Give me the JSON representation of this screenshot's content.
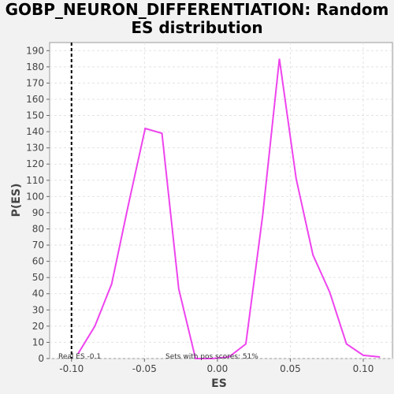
{
  "chart_data": {
    "type": "line",
    "title_line1": "GOBP_NEURON_DIFFERENTIATION: Random",
    "title_line2": "ES distribution",
    "xlabel": "ES",
    "ylabel": "P(ES)",
    "xlim": [
      -0.115,
      0.12
    ],
    "ylim": [
      0,
      195
    ],
    "x_ticks": [
      -0.1,
      -0.05,
      0.0,
      0.05,
      0.1
    ],
    "x_tick_labels": [
      "-0.10",
      "-0.05",
      "0.00",
      "0.05",
      "0.10"
    ],
    "y_ticks": [
      0,
      10,
      20,
      30,
      40,
      50,
      60,
      70,
      80,
      90,
      100,
      110,
      120,
      130,
      140,
      150,
      160,
      170,
      180,
      190
    ],
    "y_tick_labels": [
      "0",
      "10",
      "20",
      "30",
      "40",
      "50",
      "60",
      "70",
      "80",
      "90",
      "100",
      "110",
      "120",
      "130",
      "140",
      "150",
      "160",
      "170",
      "180",
      "190"
    ],
    "grid": true,
    "series": [
      {
        "color": "#ee44ee",
        "x": [
          -0.0955,
          -0.084,
          -0.0725,
          -0.061,
          -0.0495,
          -0.038,
          -0.0265,
          -0.015,
          -0.0035,
          0.008,
          0.0195,
          0.031,
          0.0425,
          0.054,
          0.0655,
          0.077,
          0.0885,
          0.1,
          0.1115
        ],
        "y": [
          3,
          20,
          46,
          95,
          142,
          139,
          43,
          0,
          0,
          1,
          9,
          88,
          185,
          111,
          64,
          41,
          9,
          2,
          1
        ]
      }
    ],
    "real_es": -0.1,
    "real_es_label": "Real ES -0.1",
    "pos_scores_label": "Sets with pos scores: 51%"
  }
}
